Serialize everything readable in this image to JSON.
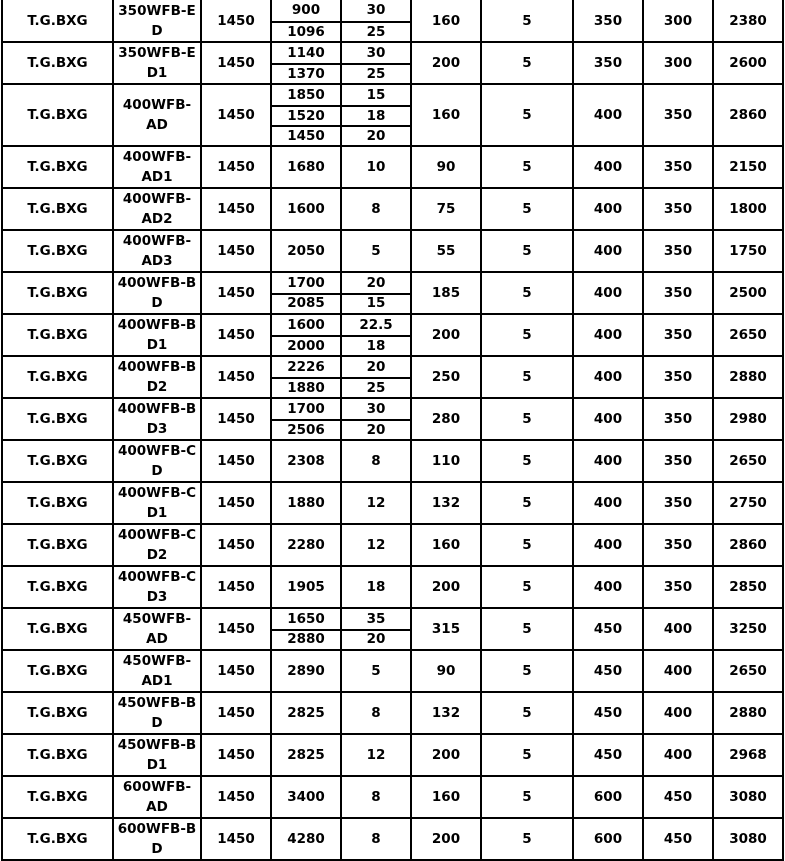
{
  "table": {
    "rows": [
      {
        "brand": "T.G.BXG",
        "model": [
          "350WFB-E",
          "D"
        ],
        "speed": "1450",
        "flows": [
          "900",
          "1096"
        ],
        "heads": [
          "30",
          "25"
        ],
        "power": "160",
        "c7": "5",
        "c8": "350",
        "c9": "300",
        "c10": "2380"
      },
      {
        "brand": "T.G.BXG",
        "model": [
          "350WFB-E",
          "D1"
        ],
        "speed": "1450",
        "flows": [
          "1140",
          "1370"
        ],
        "heads": [
          "30",
          "25"
        ],
        "power": "200",
        "c7": "5",
        "c8": "350",
        "c9": "300",
        "c10": "2600"
      },
      {
        "brand": "T.G.BXG",
        "model": [
          "400WFB-",
          "AD"
        ],
        "speed": "1450",
        "flows": [
          "1850",
          "1520",
          "1450"
        ],
        "heads": [
          "15",
          "18",
          "20"
        ],
        "power": "160",
        "c7": "5",
        "c8": "400",
        "c9": "350",
        "c10": "2860"
      },
      {
        "brand": "T.G.BXG",
        "model": [
          "400WFB-",
          "AD1"
        ],
        "speed": "1450",
        "flows": [
          "1680"
        ],
        "heads": [
          "10"
        ],
        "power": "90",
        "c7": "5",
        "c8": "400",
        "c9": "350",
        "c10": "2150"
      },
      {
        "brand": "T.G.BXG",
        "model": [
          "400WFB-",
          "AD2"
        ],
        "speed": "1450",
        "flows": [
          "1600"
        ],
        "heads": [
          "8"
        ],
        "power": "75",
        "c7": "5",
        "c8": "400",
        "c9": "350",
        "c10": "1800"
      },
      {
        "brand": "T.G.BXG",
        "model": [
          "400WFB-",
          "AD3"
        ],
        "speed": "1450",
        "flows": [
          "2050"
        ],
        "heads": [
          "5"
        ],
        "power": "55",
        "c7": "5",
        "c8": "400",
        "c9": "350",
        "c10": "1750"
      },
      {
        "brand": "T.G.BXG",
        "model": [
          "400WFB-B",
          "D"
        ],
        "speed": "1450",
        "flows": [
          "1700",
          "2085"
        ],
        "heads": [
          "20",
          "15"
        ],
        "power": "185",
        "c7": "5",
        "c8": "400",
        "c9": "350",
        "c10": "2500"
      },
      {
        "brand": "T.G.BXG",
        "model": [
          "400WFB-B",
          "D1"
        ],
        "speed": "1450",
        "flows": [
          "1600",
          "2000"
        ],
        "heads": [
          "22.5",
          "18"
        ],
        "power": "200",
        "c7": "5",
        "c8": "400",
        "c9": "350",
        "c10": "2650"
      },
      {
        "brand": "T.G.BXG",
        "model": [
          "400WFB-B",
          "D2"
        ],
        "speed": "1450",
        "flows": [
          "2226",
          "1880"
        ],
        "heads": [
          "20",
          "25"
        ],
        "power": "250",
        "c7": "5",
        "c8": "400",
        "c9": "350",
        "c10": "2880"
      },
      {
        "brand": "T.G.BXG",
        "model": [
          "400WFB-B",
          "D3"
        ],
        "speed": "1450",
        "flows": [
          "1700",
          "2506"
        ],
        "heads": [
          "30",
          "20"
        ],
        "power": "280",
        "c7": "5",
        "c8": "400",
        "c9": "350",
        "c10": "2980"
      },
      {
        "brand": "T.G.BXG",
        "model": [
          "400WFB-C",
          "D"
        ],
        "speed": "1450",
        "flows": [
          "2308"
        ],
        "heads": [
          "8"
        ],
        "power": "110",
        "c7": "5",
        "c8": "400",
        "c9": "350",
        "c10": "2650"
      },
      {
        "brand": "T.G.BXG",
        "model": [
          "400WFB-C",
          "D1"
        ],
        "speed": "1450",
        "flows": [
          "1880"
        ],
        "heads": [
          "12"
        ],
        "power": "132",
        "c7": "5",
        "c8": "400",
        "c9": "350",
        "c10": "2750"
      },
      {
        "brand": "T.G.BXG",
        "model": [
          "400WFB-C",
          "D2"
        ],
        "speed": "1450",
        "flows": [
          "2280"
        ],
        "heads": [
          "12"
        ],
        "power": "160",
        "c7": "5",
        "c8": "400",
        "c9": "350",
        "c10": "2860"
      },
      {
        "brand": "T.G.BXG",
        "model": [
          "400WFB-C",
          "D3"
        ],
        "speed": "1450",
        "flows": [
          "1905"
        ],
        "heads": [
          "18"
        ],
        "power": "200",
        "c7": "5",
        "c8": "400",
        "c9": "350",
        "c10": "2850"
      },
      {
        "brand": "T.G.BXG",
        "model": [
          "450WFB-",
          "AD"
        ],
        "speed": "1450",
        "flows": [
          "1650",
          "2880"
        ],
        "heads": [
          "35",
          "20"
        ],
        "power": "315",
        "c7": "5",
        "c8": "450",
        "c9": "400",
        "c10": "3250"
      },
      {
        "brand": "T.G.BXG",
        "model": [
          "450WFB-",
          "AD1"
        ],
        "speed": "1450",
        "flows": [
          "2890"
        ],
        "heads": [
          "5"
        ],
        "power": "90",
        "c7": "5",
        "c8": "450",
        "c9": "400",
        "c10": "2650"
      },
      {
        "brand": "T.G.BXG",
        "model": [
          "450WFB-B",
          "D"
        ],
        "speed": "1450",
        "flows": [
          "2825"
        ],
        "heads": [
          "8"
        ],
        "power": "132",
        "c7": "5",
        "c8": "450",
        "c9": "400",
        "c10": "2880"
      },
      {
        "brand": "T.G.BXG",
        "model": [
          "450WFB-B",
          "D1"
        ],
        "speed": "1450",
        "flows": [
          "2825"
        ],
        "heads": [
          "12"
        ],
        "power": "200",
        "c7": "5",
        "c8": "450",
        "c9": "400",
        "c10": "2968"
      },
      {
        "brand": "T.G.BXG",
        "model": [
          "600WFB-",
          "AD"
        ],
        "speed": "1450",
        "flows": [
          "3400"
        ],
        "heads": [
          "8"
        ],
        "power": "160",
        "c7": "5",
        "c8": "600",
        "c9": "450",
        "c10": "3080"
      },
      {
        "brand": "T.G.BXG",
        "model": [
          "600WFB-B",
          "D"
        ],
        "speed": "1450",
        "flows": [
          "4280"
        ],
        "heads": [
          "8"
        ],
        "power": "200",
        "c7": "5",
        "c8": "600",
        "c9": "450",
        "c10": "3080"
      }
    ]
  }
}
